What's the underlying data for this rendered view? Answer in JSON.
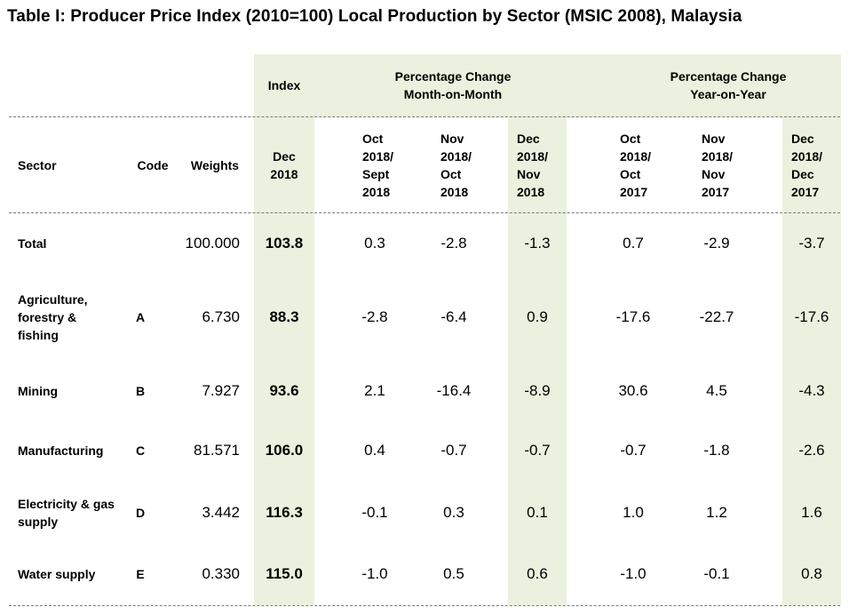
{
  "title": "Table I: Producer Price Index (2010=100) Local Production by Sector (MSIC 2008), Malaysia",
  "group_headers": {
    "index": "Index",
    "mom": "Percentage Change\nMonth-on-Month",
    "yoy": "Percentage Change\nYear-on-Year"
  },
  "columns": {
    "sector": "Sector",
    "code": "Code",
    "weights": "Weights",
    "index_dec2018": "Dec\n2018",
    "mom_oct_sep": "Oct\n2018/\nSept\n2018",
    "mom_nov_oct": "Nov\n2018/\nOct\n2018",
    "mom_dec_nov": "Dec\n2018/\nNov\n2018",
    "yoy_oct": "Oct\n2018/\nOct\n2017",
    "yoy_nov": "Nov\n2018/\nNov\n2017",
    "yoy_dec": "Dec\n2018/\nDec\n2017"
  },
  "rows": [
    {
      "sector": "Total",
      "code": "",
      "weights": "100.000",
      "index": "103.8",
      "mom_oct_sep": "0.3",
      "mom_nov_oct": "-2.8",
      "mom_dec_nov": "-1.3",
      "yoy_oct": "0.7",
      "yoy_nov": "-2.9",
      "yoy_dec": "-3.7"
    },
    {
      "sector": "Agriculture,\nforestry &\nfishing",
      "code": "A",
      "weights": "6.730",
      "index": "88.3",
      "mom_oct_sep": "-2.8",
      "mom_nov_oct": "-6.4",
      "mom_dec_nov": "0.9",
      "yoy_oct": "-17.6",
      "yoy_nov": "-22.7",
      "yoy_dec": "-17.6"
    },
    {
      "sector": "Mining",
      "code": "B",
      "weights": "7.927",
      "index": "93.6",
      "mom_oct_sep": "2.1",
      "mom_nov_oct": "-16.4",
      "mom_dec_nov": "-8.9",
      "yoy_oct": "30.6",
      "yoy_nov": "4.5",
      "yoy_dec": "-4.3"
    },
    {
      "sector": "Manufacturing",
      "code": "C",
      "weights": "81.571",
      "index": "106.0",
      "mom_oct_sep": "0.4",
      "mom_nov_oct": "-0.7",
      "mom_dec_nov": "-0.7",
      "yoy_oct": "-0.7",
      "yoy_nov": "-1.8",
      "yoy_dec": "-2.6"
    },
    {
      "sector": "Electricity & gas\nsupply",
      "code": "D",
      "weights": "3.442",
      "index": "116.3",
      "mom_oct_sep": "-0.1",
      "mom_nov_oct": "0.3",
      "mom_dec_nov": "0.1",
      "yoy_oct": "1.0",
      "yoy_nov": "1.2",
      "yoy_dec": "1.6"
    },
    {
      "sector": "Water supply",
      "code": "E",
      "weights": "0.330",
      "index": "115.0",
      "mom_oct_sep": "-1.0",
      "mom_nov_oct": "0.5",
      "mom_dec_nov": "0.6",
      "yoy_oct": "-1.0",
      "yoy_nov": "-0.1",
      "yoy_dec": "0.8"
    }
  ],
  "colors": {
    "highlight": "#ebf1de",
    "rule": "#777777"
  }
}
